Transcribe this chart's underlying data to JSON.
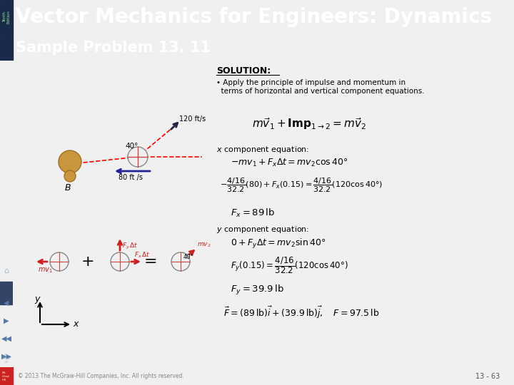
{
  "header_bg": "#5566aa",
  "header_text": "Vector Mechanics for Engineers: Dynamics",
  "header_text_color": "#ffffff",
  "header_font_size": 20,
  "sidebar_bg": "#1a2a4a",
  "sidebar_text_color": "#90ee90",
  "subheader_bg": "#6a8a4a",
  "subheader_text": "Sample Problem 13. 11",
  "subheader_text_color": "#ffffff",
  "subheader_font_size": 15,
  "body_bg": "#f0f0f0",
  "footer_text": "© 2013 The McGraw-Hill Companies, Inc. All rights reserved.",
  "page_num": "13 - 63",
  "nav_bg": "#223366"
}
